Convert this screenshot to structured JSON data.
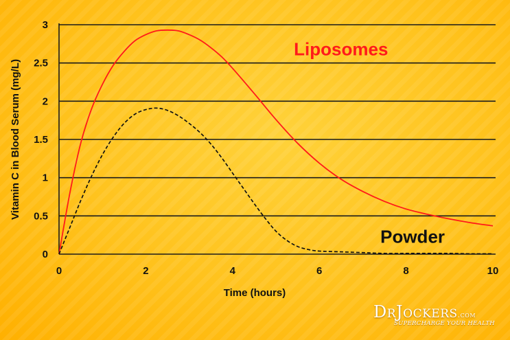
{
  "chart_data": {
    "type": "line",
    "title": "",
    "xlabel": "Time (hours)",
    "ylabel": "Vitamin C in Blood Serum (mg/L)",
    "xlim": [
      0,
      10
    ],
    "ylim": [
      0,
      3
    ],
    "x_ticks": [
      "0",
      "2",
      "4",
      "6",
      "8",
      "10"
    ],
    "y_ticks": [
      "0",
      "0.5",
      "1",
      "1.5",
      "2",
      "2.5",
      "3"
    ],
    "grid": "horizontal",
    "series": [
      {
        "name": "Liposomes",
        "color": "#ff1a1a",
        "style": "solid",
        "x": [
          0,
          0.25,
          0.5,
          0.75,
          1,
          1.25,
          1.5,
          1.75,
          2,
          2.25,
          2.5,
          2.75,
          3,
          3.25,
          3.5,
          3.75,
          4,
          4.5,
          5,
          5.5,
          6,
          6.5,
          7,
          7.5,
          8,
          8.5,
          9,
          9.5,
          10
        ],
        "values": [
          0,
          0.8,
          1.45,
          1.9,
          2.22,
          2.47,
          2.65,
          2.79,
          2.87,
          2.92,
          2.93,
          2.92,
          2.87,
          2.8,
          2.7,
          2.58,
          2.43,
          2.1,
          1.76,
          1.45,
          1.19,
          0.98,
          0.82,
          0.69,
          0.59,
          0.52,
          0.46,
          0.41,
          0.37
        ]
      },
      {
        "name": "Powder",
        "color": "#111111",
        "style": "dashed",
        "x": [
          0,
          0.25,
          0.5,
          0.75,
          1,
          1.25,
          1.5,
          1.75,
          2,
          2.25,
          2.5,
          2.75,
          3,
          3.25,
          3.5,
          3.75,
          4,
          4.25,
          4.5,
          4.75,
          5,
          5.25,
          5.5,
          5.75,
          6,
          6.5,
          7,
          7.5,
          8,
          8.5,
          9,
          9.5,
          10
        ],
        "values": [
          0,
          0.35,
          0.7,
          1.02,
          1.3,
          1.53,
          1.71,
          1.83,
          1.89,
          1.91,
          1.88,
          1.81,
          1.71,
          1.59,
          1.44,
          1.26,
          1.06,
          0.86,
          0.66,
          0.47,
          0.3,
          0.18,
          0.1,
          0.06,
          0.04,
          0.03,
          0.02,
          0.01,
          0.01,
          0.01,
          0.01,
          0.005,
          0.005
        ]
      }
    ],
    "annotations": [
      {
        "text": "Liposomes",
        "x": 6.5,
        "y": 2.68,
        "color": "#ff1a1a"
      },
      {
        "text": "Powder",
        "x": 8.15,
        "y": 0.23,
        "color": "#111111"
      }
    ]
  },
  "brand": {
    "name": "DrJockers",
    "suffix": ".com",
    "tagline": "SUPERCHARGE YOUR HEALTH"
  }
}
